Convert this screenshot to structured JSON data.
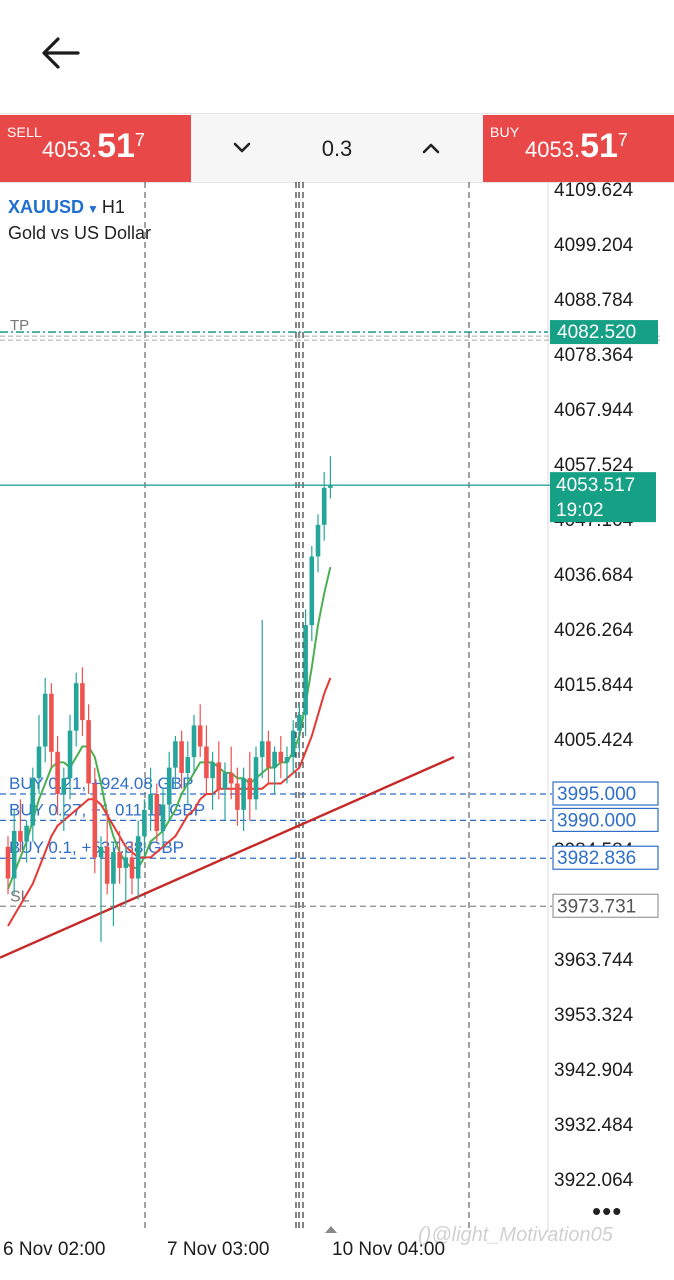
{
  "header": {
    "back_icon": "arrow-left-icon"
  },
  "trade_panel": {
    "sell": {
      "label": "SELL",
      "price_main": "4053.",
      "price_big": "51",
      "price_sup": "7"
    },
    "buy": {
      "label": "BUY",
      "price_main": "4053.",
      "price_big": "51",
      "price_sup": "7"
    },
    "lot_size": "0.3",
    "lot_down_icon": "chevron-down-icon",
    "lot_up_icon": "chevron-up-icon"
  },
  "symbol": {
    "name": "XAUUSD",
    "caret_icon": "caret-down-icon",
    "timeframe": "H1",
    "description": "Gold vs US Dollar"
  },
  "colors": {
    "sell": "#e84848",
    "buy": "#e84848",
    "bid_line": "#2aa198",
    "bid_badge": "#16a085",
    "tp": "#2aa198",
    "order_line": "#2f6fc9",
    "sl": "#8a8a8a",
    "trendline": "#c62828",
    "bull": "#26a69a",
    "bear": "#ef5350",
    "ma_fast": "#4caf50",
    "ma_slow": "#e53935"
  },
  "chart_data": {
    "type": "candlestick",
    "symbol": "XAUUSD",
    "timeframe": "H1",
    "price_axis": {
      "ticks": [
        "4109.624",
        "4099.204",
        "4088.784",
        "4078.364",
        "4067.944",
        "4057.524",
        "4047.104",
        "4036.684",
        "4026.264",
        "4015.844",
        "4005.424",
        "3995.004",
        "3984.584",
        "3974.164",
        "3963.744",
        "3953.324",
        "3942.904",
        "3932.484",
        "3922.064"
      ],
      "range": [
        3915.0,
        4112.0
      ]
    },
    "time_axis": {
      "labels": [
        "6 Nov 02:00",
        "7 Nov 03:00",
        "10 Nov 04:00"
      ]
    },
    "current_price": {
      "price": "4053.517",
      "timer": "19:02"
    },
    "take_profit": {
      "label": "TP",
      "price": "4082.520"
    },
    "stop_loss": {
      "label": "SL",
      "price": "3973.731"
    },
    "orders": [
      {
        "label": "BUY 0.21, +924.08 GBP",
        "price": "3995.000"
      },
      {
        "label": "BUY 0.27, +1 011.11 GBP",
        "price": "3990.000"
      },
      {
        "label": "BUY 0.1, +537.38 GBP",
        "price": "3982.836"
      }
    ],
    "candles": [
      [
        3985,
        3987,
        3976,
        3979
      ],
      [
        3979,
        3992,
        3976,
        3988
      ],
      [
        3988,
        3994,
        3984,
        3986
      ],
      [
        3986,
        3990,
        3982,
        3989
      ],
      [
        3989,
        4000,
        3986,
        3998
      ],
      [
        3998,
        4010,
        3995,
        4004
      ],
      [
        4004,
        4017,
        4001,
        4014
      ],
      [
        4014,
        4016,
        4000,
        4003
      ],
      [
        4003,
        4006,
        3991,
        3995
      ],
      [
        3995,
        4000,
        3988,
        3998
      ],
      [
        3998,
        4010,
        3994,
        4007
      ],
      [
        4007,
        4018,
        4004,
        4016
      ],
      [
        4016,
        4019,
        4006,
        4009
      ],
      [
        4009,
        4012,
        3995,
        3997
      ],
      [
        3997,
        4000,
        3980,
        3983
      ],
      [
        3983,
        3987,
        3967,
        3985
      ],
      [
        3985,
        3992,
        3976,
        3978
      ],
      [
        3978,
        3986,
        3970,
        3984
      ],
      [
        3984,
        3988,
        3978,
        3981
      ],
      [
        3981,
        3985,
        3974,
        3983
      ],
      [
        3983,
        3986,
        3976,
        3979
      ],
      [
        3979,
        3990,
        3975,
        3987
      ],
      [
        3987,
        3994,
        3983,
        3992
      ],
      [
        3992,
        4000,
        3988,
        3995
      ],
      [
        3995,
        3997,
        3986,
        3988
      ],
      [
        3988,
        3996,
        3985,
        3993
      ],
      [
        3993,
        4003,
        3990,
        4000
      ],
      [
        4000,
        4006,
        3996,
        4005
      ],
      [
        4005,
        4007,
        3996,
        3999
      ],
      [
        3999,
        4005,
        3993,
        4002
      ],
      [
        4002,
        4010,
        3999,
        4008
      ],
      [
        4008,
        4012,
        4002,
        4004
      ],
      [
        4004,
        4008,
        3995,
        3998
      ],
      [
        3998,
        4003,
        3992,
        4001
      ],
      [
        4001,
        4005,
        3994,
        3996
      ],
      [
        3996,
        4001,
        3990,
        3999
      ],
      [
        3999,
        4004,
        3994,
        3997
      ],
      [
        3997,
        4000,
        3989,
        3992
      ],
      [
        3992,
        4000,
        3988,
        3998
      ],
      [
        3998,
        4003,
        3990,
        3994
      ],
      [
        3994,
        4004,
        3992,
        4002
      ],
      [
        4002,
        4028,
        3998,
        4005
      ],
      [
        4005,
        4007,
        3997,
        4000
      ],
      [
        4000,
        4004,
        3995,
        4003
      ],
      [
        4003,
        4006,
        3998,
        4001
      ],
      [
        4001,
        4004,
        3997,
        4002
      ],
      [
        4002,
        4009,
        3999,
        4007
      ],
      [
        4007,
        4012,
        4003,
        4010
      ],
      [
        4010,
        4030,
        4006,
        4027
      ],
      [
        4027,
        4042,
        4024,
        4040
      ],
      [
        4040,
        4048,
        4037,
        4046
      ],
      [
        4046,
        4056,
        4043,
        4053
      ],
      [
        4053,
        4059,
        4051,
        4053.5
      ]
    ],
    "moving_averages": [
      {
        "color": "#4caf50",
        "values": [
          3977,
          3980,
          3983,
          3986,
          3990,
          3994,
          3997,
          4000,
          4001,
          4001,
          4000,
          4002,
          4004,
          4004,
          4002,
          3997,
          3991,
          3987,
          3984,
          3982,
          3981,
          3981,
          3983,
          3986,
          3987,
          3988,
          3990,
          3992,
          3995,
          3997,
          3999,
          4001,
          4001,
          4001,
          4000,
          3999,
          3999,
          3998,
          3998,
          3997,
          3998,
          3999,
          4000,
          4000,
          4001,
          4001,
          4003,
          4006,
          4012,
          4019,
          4027,
          4033,
          4038
        ]
      },
      {
        "color": "#e53935",
        "values": [
          3970,
          3972,
          3974,
          3976,
          3978,
          3981,
          3984,
          3987,
          3989,
          3990,
          3991,
          3992,
          3993,
          3994,
          3994,
          3993,
          3991,
          3989,
          3987,
          3985,
          3984,
          3983,
          3983,
          3983,
          3984,
          3985,
          3986,
          3987,
          3989,
          3991,
          3992,
          3994,
          3995,
          3995,
          3996,
          3996,
          3996,
          3996,
          3996,
          3996,
          3996,
          3996,
          3997,
          3997,
          3997,
          3998,
          3999,
          4000,
          4003,
          4006,
          4010,
          4014,
          4017
        ]
      }
    ],
    "trendline": {
      "from": [
        0,
        3964
      ],
      "to": [
        60,
        4002
      ]
    },
    "grid": true
  },
  "more_icon": "more-horizontal-icon",
  "watermark": "()@light_Motivation05"
}
